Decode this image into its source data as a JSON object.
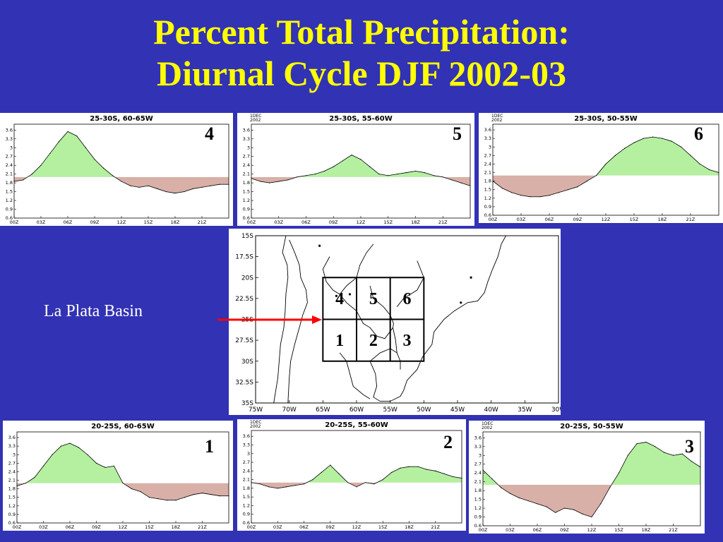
{
  "title_line1": "Percent Total Precipitation:",
  "title_line2": "Diurnal Cycle DJF 2002-03",
  "basin_label": "La Plata Basin",
  "colors": {
    "background": "#3232b4",
    "title": "#ffff00",
    "above": "#b4f0a0",
    "below": "#d8b0a8",
    "arrow": "#ff0000"
  },
  "map": {
    "lat_ticks": [
      "15S",
      "17.5S",
      "20S",
      "22.5S",
      "25S",
      "27.5S",
      "30S",
      "32.5S",
      "35S"
    ],
    "lon_ticks": [
      "75W",
      "70W",
      "65W",
      "60W",
      "55W",
      "50W",
      "45W",
      "40W",
      "35W",
      "30W"
    ],
    "grid_labels": [
      "4",
      "5",
      "6",
      "1",
      "2",
      "3"
    ]
  },
  "chart_data": [
    {
      "type": "area",
      "region": "4",
      "title": "25-30S, 60-65W",
      "header": "",
      "x": [
        "00Z",
        "01Z",
        "02Z",
        "03Z",
        "04Z",
        "05Z",
        "06Z",
        "07Z",
        "08Z",
        "09Z",
        "10Z",
        "11Z",
        "12Z",
        "13Z",
        "14Z",
        "15Z",
        "16Z",
        "17Z",
        "18Z",
        "19Z",
        "20Z",
        "21Z",
        "22Z",
        "23Z",
        "24Z"
      ],
      "xticks": [
        "00Z",
        "03Z",
        "06Z",
        "09Z",
        "12Z",
        "15Z",
        "18Z",
        "21Z"
      ],
      "yticks": [
        "0.6",
        "0.9",
        "1.2",
        "1.5",
        "1.8",
        "2.1",
        "2.4",
        "2.7",
        "3",
        "3.3",
        "3.6"
      ],
      "ylim": [
        0.6,
        3.8
      ],
      "baseline": 2.0,
      "values": [
        1.85,
        1.9,
        2.1,
        2.4,
        2.8,
        3.2,
        3.55,
        3.4,
        3.0,
        2.6,
        2.3,
        2.05,
        1.85,
        1.7,
        1.65,
        1.7,
        1.6,
        1.5,
        1.45,
        1.5,
        1.6,
        1.65,
        1.7,
        1.75,
        1.75
      ]
    },
    {
      "type": "area",
      "region": "5",
      "title": "25-30S, 55-60W",
      "header": "1DEC 2002",
      "x": [
        "00Z",
        "01Z",
        "02Z",
        "03Z",
        "04Z",
        "05Z",
        "06Z",
        "07Z",
        "08Z",
        "09Z",
        "10Z",
        "11Z",
        "12Z",
        "13Z",
        "14Z",
        "15Z",
        "16Z",
        "17Z",
        "18Z",
        "19Z",
        "20Z",
        "21Z",
        "22Z",
        "23Z",
        "24Z"
      ],
      "xticks": [
        "00Z",
        "03Z",
        "06Z",
        "09Z",
        "12Z",
        "15Z",
        "18Z",
        "21Z"
      ],
      "yticks": [
        "0.6",
        "0.9",
        "1.2",
        "1.5",
        "1.8",
        "2.1",
        "2.4",
        "2.7",
        "3",
        "3.3",
        "3.6"
      ],
      "ylim": [
        0.6,
        3.8
      ],
      "baseline": 2.0,
      "values": [
        1.95,
        1.85,
        1.8,
        1.85,
        1.9,
        2.0,
        2.05,
        2.1,
        2.2,
        2.35,
        2.55,
        2.75,
        2.6,
        2.35,
        2.1,
        2.05,
        2.1,
        2.15,
        2.2,
        2.15,
        2.05,
        2.0,
        1.9,
        1.8,
        1.7
      ]
    },
    {
      "type": "area",
      "region": "6",
      "title": "25-30S, 50-55W",
      "header": "1DEC 2002",
      "x": [
        "00Z",
        "01Z",
        "02Z",
        "03Z",
        "04Z",
        "05Z",
        "06Z",
        "07Z",
        "08Z",
        "09Z",
        "10Z",
        "11Z",
        "12Z",
        "13Z",
        "14Z",
        "15Z",
        "16Z",
        "17Z",
        "18Z",
        "19Z",
        "20Z",
        "21Z",
        "22Z",
        "23Z",
        "24Z"
      ],
      "xticks": [
        "00Z",
        "03Z",
        "06Z",
        "09Z",
        "12Z",
        "15Z",
        "18Z",
        "21Z"
      ],
      "yticks": [
        "0.6",
        "0.9",
        "1.2",
        "1.5",
        "1.8",
        "2.1",
        "2.4",
        "2.7",
        "3",
        "3.3",
        "3.6"
      ],
      "ylim": [
        0.6,
        3.8
      ],
      "baseline": 2.0,
      "values": [
        1.8,
        1.55,
        1.4,
        1.3,
        1.25,
        1.25,
        1.3,
        1.4,
        1.5,
        1.6,
        1.8,
        2.0,
        2.4,
        2.7,
        2.95,
        3.15,
        3.3,
        3.35,
        3.3,
        3.2,
        3.0,
        2.7,
        2.4,
        2.2,
        2.1
      ]
    },
    {
      "type": "area",
      "region": "1",
      "title": "20-25S, 60-65W",
      "header": "",
      "x": [
        "00Z",
        "01Z",
        "02Z",
        "03Z",
        "04Z",
        "05Z",
        "06Z",
        "07Z",
        "08Z",
        "09Z",
        "10Z",
        "11Z",
        "12Z",
        "13Z",
        "14Z",
        "15Z",
        "16Z",
        "17Z",
        "18Z",
        "19Z",
        "20Z",
        "21Z",
        "22Z",
        "23Z",
        "24Z"
      ],
      "xticks": [
        "00Z",
        "03Z",
        "06Z",
        "09Z",
        "12Z",
        "15Z",
        "18Z",
        "21Z"
      ],
      "yticks": [
        "0.6",
        "0.9",
        "1.2",
        "1.5",
        "1.8",
        "2.1",
        "2.4",
        "2.7",
        "3",
        "3.3",
        "3.6"
      ],
      "ylim": [
        0.6,
        3.8
      ],
      "baseline": 2.0,
      "values": [
        1.9,
        2.0,
        2.2,
        2.6,
        3.0,
        3.3,
        3.4,
        3.25,
        3.0,
        2.7,
        2.55,
        2.6,
        2.0,
        1.8,
        1.7,
        1.5,
        1.45,
        1.4,
        1.4,
        1.5,
        1.6,
        1.65,
        1.6,
        1.55,
        1.55
      ]
    },
    {
      "type": "area",
      "region": "2",
      "title": "20-25S, 55-60W",
      "header": "1DEC 2002",
      "x": [
        "00Z",
        "01Z",
        "02Z",
        "03Z",
        "04Z",
        "05Z",
        "06Z",
        "07Z",
        "08Z",
        "09Z",
        "10Z",
        "11Z",
        "12Z",
        "13Z",
        "14Z",
        "15Z",
        "16Z",
        "17Z",
        "18Z",
        "19Z",
        "20Z",
        "21Z",
        "22Z",
        "23Z",
        "24Z"
      ],
      "xticks": [
        "00Z",
        "03Z",
        "06Z",
        "09Z",
        "12Z",
        "15Z",
        "18Z",
        "21Z"
      ],
      "yticks": [
        "0.6",
        "0.9",
        "1.2",
        "1.5",
        "1.8",
        "2.1",
        "2.4",
        "2.7",
        "3",
        "3.3",
        "3.6"
      ],
      "ylim": [
        0.6,
        3.8
      ],
      "baseline": 2.0,
      "values": [
        2.0,
        1.95,
        1.85,
        1.8,
        1.85,
        1.9,
        1.95,
        2.1,
        2.35,
        2.6,
        2.3,
        2.0,
        1.85,
        2.0,
        1.95,
        2.1,
        2.35,
        2.5,
        2.55,
        2.55,
        2.45,
        2.4,
        2.3,
        2.2,
        2.15
      ]
    },
    {
      "type": "area",
      "region": "3",
      "title": "20-25S, 50-55W",
      "header": "1DEC 2002",
      "x": [
        "00Z",
        "01Z",
        "02Z",
        "03Z",
        "04Z",
        "05Z",
        "06Z",
        "07Z",
        "08Z",
        "09Z",
        "10Z",
        "11Z",
        "12Z",
        "13Z",
        "14Z",
        "15Z",
        "16Z",
        "17Z",
        "18Z",
        "19Z",
        "20Z",
        "21Z",
        "22Z",
        "23Z",
        "24Z"
      ],
      "xticks": [
        "00Z",
        "03Z",
        "06Z",
        "09Z",
        "12Z",
        "15Z",
        "18Z",
        "21Z"
      ],
      "yticks": [
        "0.6",
        "0.9",
        "1.2",
        "1.5",
        "1.8",
        "2.1",
        "2.4",
        "2.7",
        "3",
        "3.3",
        "3.6"
      ],
      "ylim": [
        0.6,
        3.8
      ],
      "baseline": 2.0,
      "values": [
        2.5,
        2.2,
        1.9,
        1.7,
        1.55,
        1.45,
        1.35,
        1.25,
        1.05,
        1.2,
        1.15,
        1.0,
        0.9,
        1.35,
        1.9,
        2.4,
        3.0,
        3.4,
        3.45,
        3.3,
        3.1,
        3.0,
        3.05,
        2.8,
        2.6
      ]
    }
  ]
}
